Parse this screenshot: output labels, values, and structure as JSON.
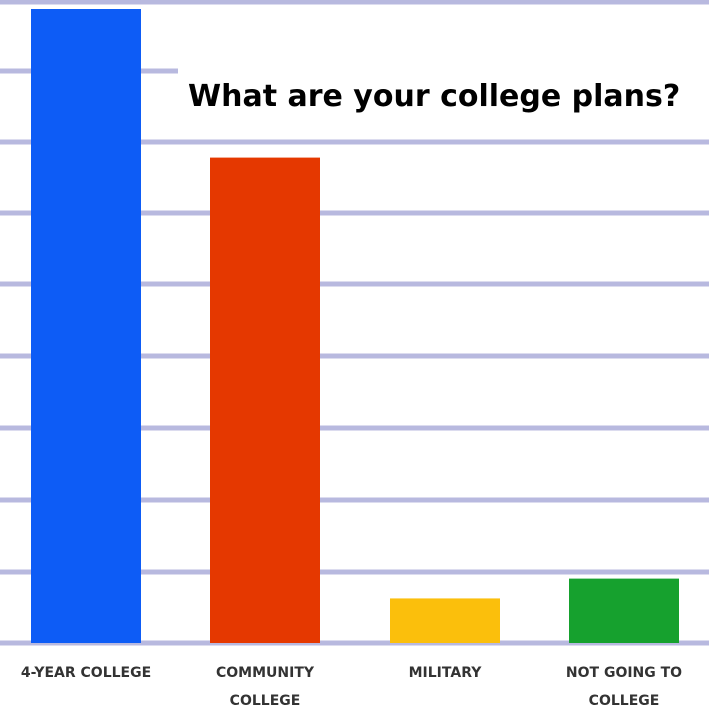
{
  "chart_data": {
    "type": "bar",
    "title": "What are your college plans?",
    "categories": [
      [
        "4-YEAR COLLEGE"
      ],
      [
        "COMMUNITY",
        "COLLEGE"
      ],
      [
        "MILITARY"
      ],
      [
        "NOT GOING TO",
        "COLLEGE"
      ]
    ],
    "values": [
      64,
      49,
      4.5,
      6.5
    ],
    "colors": [
      "#0d5cf6",
      "#e53800",
      "#fbbf0c",
      "#16a12e"
    ],
    "ylim": [
      0,
      64
    ],
    "grid": true
  }
}
